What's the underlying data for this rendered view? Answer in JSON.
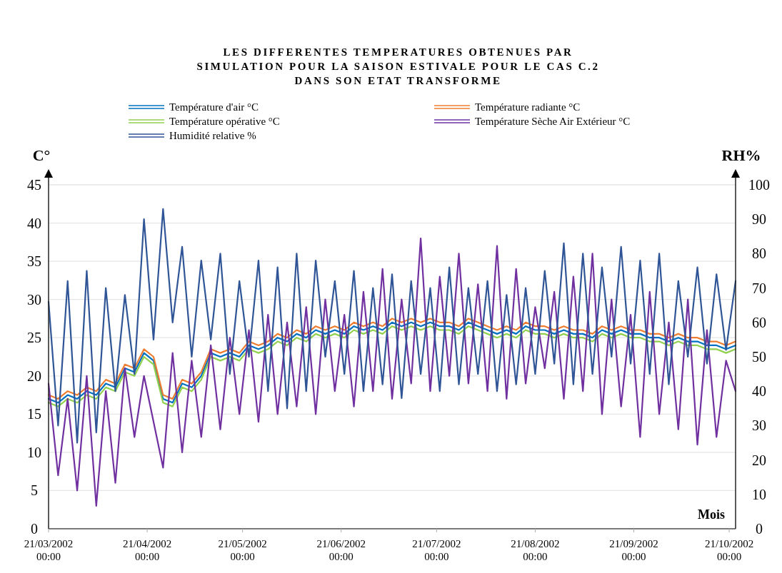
{
  "chart_data": {
    "type": "line",
    "title": "LES DIFFERENTES TEMPERATURES OBTENUES PAR\nSIMULATION POUR LA SAISON ESTIVALE POUR LE CAS C.2\nDANS SON ETAT TRANSFORME",
    "xlabel": "Mois",
    "ylabel": "C°",
    "y2label": "RH%",
    "x": [
      "2002-03-21",
      "2002-03-24",
      "2002-03-27",
      "2002-03-30",
      "2002-04-02",
      "2002-04-05",
      "2002-04-08",
      "2002-04-11",
      "2002-04-14",
      "2002-04-17",
      "2002-04-20",
      "2002-04-23",
      "2002-04-26",
      "2002-04-29",
      "2002-05-02",
      "2002-05-05",
      "2002-05-08",
      "2002-05-11",
      "2002-05-14",
      "2002-05-17",
      "2002-05-20",
      "2002-05-23",
      "2002-05-26",
      "2002-05-29",
      "2002-06-01",
      "2002-06-04",
      "2002-06-07",
      "2002-06-10",
      "2002-06-13",
      "2002-06-16",
      "2002-06-19",
      "2002-06-22",
      "2002-06-25",
      "2002-06-28",
      "2002-07-01",
      "2002-07-04",
      "2002-07-07",
      "2002-07-10",
      "2002-07-13",
      "2002-07-16",
      "2002-07-19",
      "2002-07-22",
      "2002-07-25",
      "2002-07-28",
      "2002-07-31",
      "2002-08-03",
      "2002-08-06",
      "2002-08-09",
      "2002-08-12",
      "2002-08-15",
      "2002-08-18",
      "2002-08-21",
      "2002-08-24",
      "2002-08-27",
      "2002-08-30",
      "2002-09-02",
      "2002-09-05",
      "2002-09-08",
      "2002-09-11",
      "2002-09-14",
      "2002-09-17",
      "2002-09-20",
      "2002-09-23",
      "2002-09-26",
      "2002-09-29",
      "2002-10-02",
      "2002-10-05",
      "2002-10-08",
      "2002-10-11",
      "2002-10-14",
      "2002-10-17",
      "2002-10-20",
      "2002-10-23"
    ],
    "xlim": [
      "2002-03-21",
      "2002-10-23"
    ],
    "xticks": [
      {
        "value": "2002-03-21",
        "label": "21/03/2002 00:00"
      },
      {
        "value": "2002-04-21",
        "label": "21/04/2002 00:00"
      },
      {
        "value": "2002-05-21",
        "label": "21/05/2002 00:00"
      },
      {
        "value": "2002-06-21",
        "label": "21/06/2002 00:00"
      },
      {
        "value": "2002-07-21",
        "label": "21/07/2002 00:00"
      },
      {
        "value": "2002-08-21",
        "label": "21/08/2002 00:00"
      },
      {
        "value": "2002-09-21",
        "label": "21/09/2002 00:00"
      },
      {
        "value": "2002-10-21",
        "label": "21/10/2002 00:00"
      }
    ],
    "ylim": [
      0,
      45
    ],
    "yticks": [
      0,
      5,
      10,
      15,
      20,
      25,
      30,
      35,
      40,
      45
    ],
    "y2lim": [
      0,
      100
    ],
    "y2ticks": [
      0,
      10,
      20,
      30,
      40,
      50,
      60,
      70,
      80,
      90,
      100
    ],
    "grid": "y",
    "legend": "top",
    "line_style": "solid",
    "marker": "none",
    "series": [
      {
        "name": "Température d'air °C",
        "color": "#0070c0",
        "values": [
          17,
          16.5,
          17.5,
          17,
          18,
          17.5,
          19,
          18.5,
          21,
          20.5,
          23,
          22,
          17,
          16.5,
          19,
          18.5,
          20,
          23,
          22.5,
          23,
          22.5,
          24,
          23.5,
          24,
          25,
          24.5,
          25.5,
          25,
          26,
          25.5,
          26,
          25.5,
          26.5,
          26,
          26.5,
          26,
          27,
          26.5,
          27,
          26.5,
          27,
          26.5,
          26.5,
          26,
          27,
          26.5,
          26,
          25.5,
          26,
          25.5,
          26.5,
          26,
          26,
          25.5,
          26,
          25.5,
          25.5,
          25,
          26,
          25.5,
          26,
          25.5,
          25.5,
          25,
          25,
          24.5,
          25,
          24.5,
          24.5,
          24,
          24,
          23.5,
          24
        ]
      },
      {
        "name": "Température radiante °C",
        "color": "#ed7d31",
        "values": [
          17.5,
          17,
          18,
          17.5,
          18.5,
          18,
          19.5,
          19,
          21.5,
          21,
          23.5,
          22.5,
          17.5,
          17,
          19.5,
          19,
          20.5,
          23.5,
          23,
          23.5,
          23,
          24.5,
          24,
          24.5,
          25.5,
          25,
          26,
          25.5,
          26.5,
          26,
          26.5,
          26,
          27,
          26.5,
          27,
          26.5,
          27.5,
          27,
          27.5,
          27,
          27.5,
          27,
          27,
          26.5,
          27.5,
          27,
          26.5,
          26,
          26.5,
          26,
          27,
          26.5,
          26.5,
          26,
          26.5,
          26,
          26,
          25.5,
          26.5,
          26,
          26.5,
          26,
          26,
          25.5,
          25.5,
          25,
          25.5,
          25,
          25,
          24.5,
          24.5,
          24,
          24.5
        ]
      },
      {
        "name": "Température opérative °C",
        "color": "#92d050",
        "values": [
          16.5,
          16,
          17,
          16.5,
          17.5,
          17,
          18.5,
          18,
          20.5,
          20,
          22.5,
          21.5,
          16.5,
          16,
          18.5,
          18,
          19.5,
          22.5,
          22,
          22.5,
          22,
          23.5,
          23,
          23.5,
          24.5,
          24,
          25,
          24.5,
          25.5,
          25,
          25.5,
          25,
          26,
          25.5,
          26,
          25.5,
          26.5,
          26,
          26.5,
          26,
          26.5,
          26,
          26,
          25.5,
          26.5,
          26,
          25.5,
          25,
          25.5,
          25,
          26,
          25.5,
          25.5,
          25,
          25.5,
          25,
          25,
          24.5,
          25.5,
          25,
          25.5,
          25,
          25,
          24.5,
          24.5,
          24,
          24.5,
          24,
          24,
          23.5,
          23.5,
          23,
          23.5
        ]
      },
      {
        "name": "Température Sèche Air Extérieur °C",
        "color": "#7030a0",
        "values": [
          19,
          7,
          17,
          5,
          20,
          3,
          18,
          6,
          21,
          12,
          20,
          14,
          8,
          23,
          10,
          22,
          12,
          24,
          13,
          25,
          15,
          26,
          14,
          28,
          15,
          27,
          16,
          29,
          15,
          30,
          18,
          28,
          16,
          31,
          18,
          34,
          17,
          30,
          19,
          38,
          18,
          33,
          20,
          36,
          19,
          32,
          18,
          37,
          17,
          34,
          19,
          29,
          21,
          31,
          17,
          33,
          18,
          36,
          15,
          30,
          16,
          28,
          12,
          31,
          15,
          27,
          13,
          30,
          11,
          26,
          12,
          22,
          18
        ]
      },
      {
        "name": "Humidité relative %",
        "color": "#2f5597",
        "axis": "y2",
        "values": [
          66,
          30,
          72,
          25,
          75,
          28,
          70,
          40,
          68,
          45,
          90,
          55,
          93,
          60,
          82,
          50,
          78,
          55,
          80,
          45,
          72,
          50,
          78,
          40,
          76,
          35,
          80,
          40,
          78,
          50,
          72,
          45,
          75,
          40,
          70,
          42,
          74,
          38,
          72,
          45,
          70,
          40,
          76,
          42,
          70,
          45,
          72,
          40,
          68,
          42,
          70,
          45,
          75,
          48,
          83,
          42,
          80,
          45,
          76,
          50,
          82,
          48,
          78,
          45,
          80,
          42,
          72,
          50,
          76,
          48,
          74,
          52,
          72
        ]
      }
    ]
  }
}
